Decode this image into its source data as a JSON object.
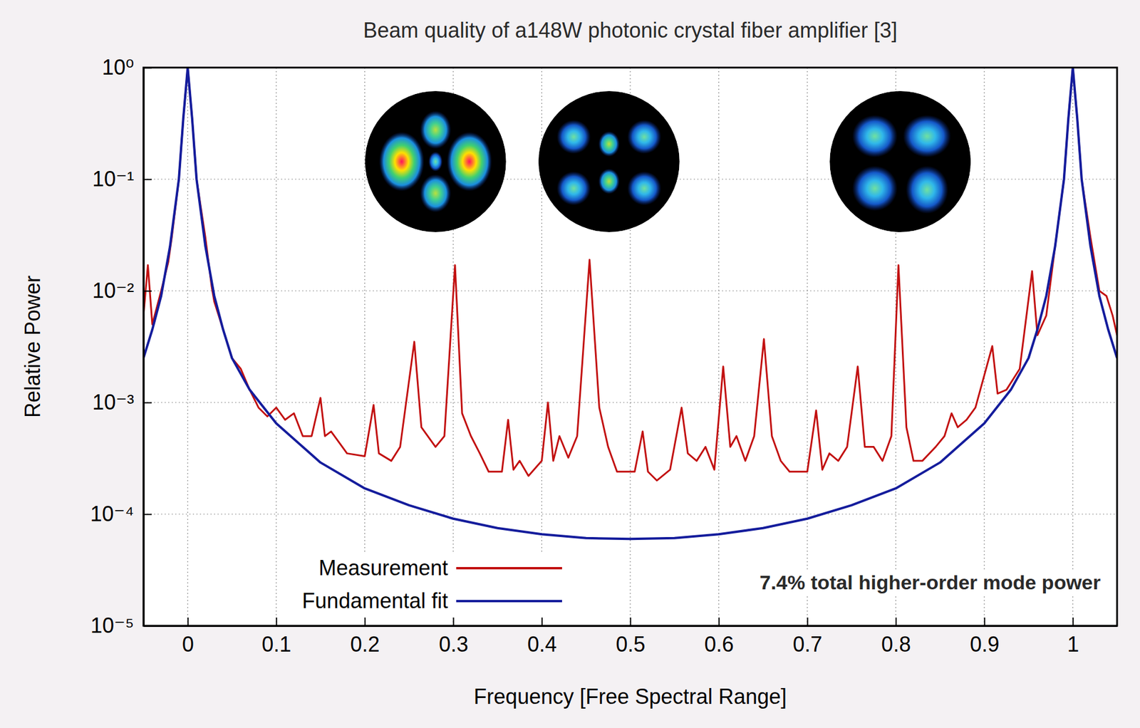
{
  "chart_data": {
    "type": "line",
    "title": "Beam quality of a148W photonic crystal fiber amplifier [3]",
    "x_label": "Frequency [Free Spectral Range]",
    "y_label": "Relative Power",
    "annotations": [
      "7.4% total higher-order mode power"
    ],
    "log": "y",
    "grid": true,
    "legend": "lower left",
    "xlim": [
      -0.05,
      1.05
    ],
    "xticks": [
      0,
      0.1,
      0.2,
      0.3,
      0.4,
      0.5,
      0.6,
      0.7,
      0.8,
      0.9,
      1
    ],
    "ylim": [
      1e-05,
      1
    ],
    "yticks": [
      {
        "value": 1e-05,
        "label": "10⁻⁵"
      },
      {
        "value": 0.0001,
        "label": "10⁻⁴"
      },
      {
        "value": 0.001,
        "label": "10⁻³"
      },
      {
        "value": 0.01,
        "label": "10⁻²"
      },
      {
        "value": 0.1,
        "label": "10⁻¹"
      },
      {
        "value": 1,
        "label": "10⁰"
      }
    ],
    "series": [
      {
        "name": "Measurement",
        "color": "#c21010",
        "x": [
          -0.05,
          -0.045,
          -0.04,
          -0.03,
          -0.022,
          -0.018,
          -0.01,
          -0.005,
          0,
          0.005,
          0.01,
          0.02,
          0.027,
          0.03,
          0.04,
          0.05,
          0.06,
          0.07,
          0.08,
          0.09,
          0.1,
          0.11,
          0.12,
          0.13,
          0.14,
          0.15,
          0.155,
          0.162,
          0.17,
          0.18,
          0.2,
          0.21,
          0.216,
          0.23,
          0.24,
          0.256,
          0.264,
          0.28,
          0.29,
          0.302,
          0.31,
          0.32,
          0.33,
          0.34,
          0.355,
          0.362,
          0.368,
          0.375,
          0.385,
          0.4,
          0.407,
          0.413,
          0.42,
          0.43,
          0.44,
          0.454,
          0.465,
          0.475,
          0.485,
          0.505,
          0.514,
          0.52,
          0.53,
          0.545,
          0.558,
          0.565,
          0.575,
          0.585,
          0.595,
          0.605,
          0.613,
          0.62,
          0.63,
          0.64,
          0.651,
          0.66,
          0.67,
          0.68,
          0.7,
          0.71,
          0.717,
          0.725,
          0.735,
          0.745,
          0.757,
          0.765,
          0.775,
          0.785,
          0.795,
          0.803,
          0.812,
          0.82,
          0.83,
          0.845,
          0.855,
          0.863,
          0.87,
          0.88,
          0.89,
          0.909,
          0.915,
          0.925,
          0.94,
          0.954,
          0.96,
          0.97,
          0.98,
          0.99,
          0.995,
          1,
          1.005,
          1.01,
          1.02,
          1.03,
          1.038,
          1.045,
          1.05
        ],
        "values": [
          0.006,
          0.017,
          0.005,
          0.01,
          0.018,
          0.03,
          0.1,
          0.35,
          1,
          0.35,
          0.1,
          0.03,
          0.011,
          0.008,
          0.0045,
          0.0025,
          0.002,
          0.0013,
          0.0009,
          0.00075,
          0.0009,
          0.0007,
          0.0008,
          0.0005,
          0.0005,
          0.0011,
          0.0005,
          0.00055,
          0.00045,
          0.00035,
          0.00033,
          0.00095,
          0.00035,
          0.0003,
          0.0004,
          0.0035,
          0.0006,
          0.0004,
          0.0005,
          0.017,
          0.0008,
          0.0005,
          0.00035,
          0.00024,
          0.00024,
          0.0007,
          0.00025,
          0.0003,
          0.00022,
          0.0003,
          0.001,
          0.0003,
          0.0005,
          0.00032,
          0.0005,
          0.019,
          0.0009,
          0.0004,
          0.00024,
          0.00024,
          0.00055,
          0.00024,
          0.0002,
          0.00025,
          0.0009,
          0.00035,
          0.0003,
          0.0004,
          0.00025,
          0.0021,
          0.0004,
          0.0005,
          0.0003,
          0.0005,
          0.0037,
          0.0005,
          0.0003,
          0.00024,
          0.00024,
          0.00085,
          0.00025,
          0.00035,
          0.0003,
          0.0004,
          0.0021,
          0.0004,
          0.0004,
          0.0003,
          0.0005,
          0.017,
          0.0006,
          0.0003,
          0.0003,
          0.0004,
          0.0005,
          0.0008,
          0.0006,
          0.0007,
          0.0009,
          0.0032,
          0.0012,
          0.0013,
          0.002,
          0.015,
          0.004,
          0.006,
          0.025,
          0.1,
          0.35,
          1,
          0.35,
          0.1,
          0.03,
          0.01,
          0.009,
          0.006,
          0.004
        ]
      },
      {
        "name": "Fundamental fit",
        "color": "#141c9c",
        "x": [
          -0.05,
          -0.04,
          -0.03,
          -0.02,
          -0.01,
          -0.005,
          0,
          0.005,
          0.01,
          0.02,
          0.03,
          0.04,
          0.05,
          0.07,
          0.1,
          0.15,
          0.2,
          0.25,
          0.3,
          0.35,
          0.4,
          0.45,
          0.5,
          0.55,
          0.6,
          0.65,
          0.7,
          0.75,
          0.8,
          0.85,
          0.9,
          0.93,
          0.95,
          0.96,
          0.97,
          0.98,
          0.99,
          0.995,
          1,
          1.005,
          1.01,
          1.02,
          1.03,
          1.04,
          1.05
        ],
        "values": [
          0.0025,
          0.0045,
          0.009,
          0.025,
          0.1,
          0.35,
          1,
          0.35,
          0.1,
          0.025,
          0.009,
          0.0045,
          0.0025,
          0.0013,
          0.00065,
          0.00029,
          0.00017,
          0.00012,
          9.1e-05,
          7.5e-05,
          6.6e-05,
          6.1e-05,
          6e-05,
          6.1e-05,
          6.6e-05,
          7.5e-05,
          9.1e-05,
          0.00012,
          0.00017,
          0.00029,
          0.00065,
          0.0013,
          0.0025,
          0.0045,
          0.009,
          0.025,
          0.1,
          0.35,
          1,
          0.35,
          0.1,
          0.025,
          0.009,
          0.0045,
          0.0025
        ]
      }
    ]
  }
}
